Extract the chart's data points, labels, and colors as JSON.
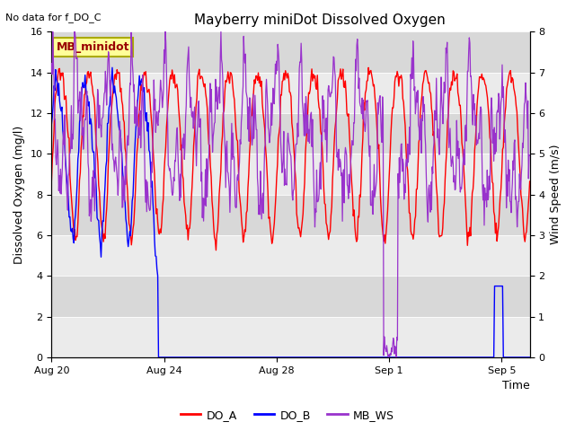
{
  "title": "Mayberry miniDot Dissolved Oxygen",
  "top_left_text": "No data for f_DO_C",
  "box_label": "MB_minidot",
  "xlabel": "Time",
  "ylabel_left": "Dissolved Oxygen (mg/l)",
  "ylabel_right": "Wind Speed (m/s)",
  "ylim_left": [
    0,
    16
  ],
  "ylim_right": [
    0.0,
    8.0
  ],
  "yticks_left": [
    0,
    2,
    4,
    6,
    8,
    10,
    12,
    14,
    16
  ],
  "yticks_right": [
    0.0,
    1.0,
    2.0,
    3.0,
    4.0,
    5.0,
    6.0,
    7.0,
    8.0
  ],
  "xtick_labels": [
    "Aug 20",
    "Aug 24",
    "Aug 28",
    "Sep 1",
    "Sep 5"
  ],
  "legend_entries": [
    "DO_A",
    "DO_B",
    "MB_WS"
  ],
  "color_DO_A": "#ff0000",
  "color_DO_B": "#0000ff",
  "color_MB_WS": "#9933cc",
  "plot_bg_color": "#e8e8e8",
  "band_light_color": "#ebebeb",
  "band_dark_color": "#d8d8d8",
  "box_face_color": "#ffff99",
  "box_edge_color": "#aaaa00",
  "box_text_color": "#990000",
  "figsize": [
    6.4,
    4.8
  ],
  "dpi": 100,
  "total_days": 17.0
}
